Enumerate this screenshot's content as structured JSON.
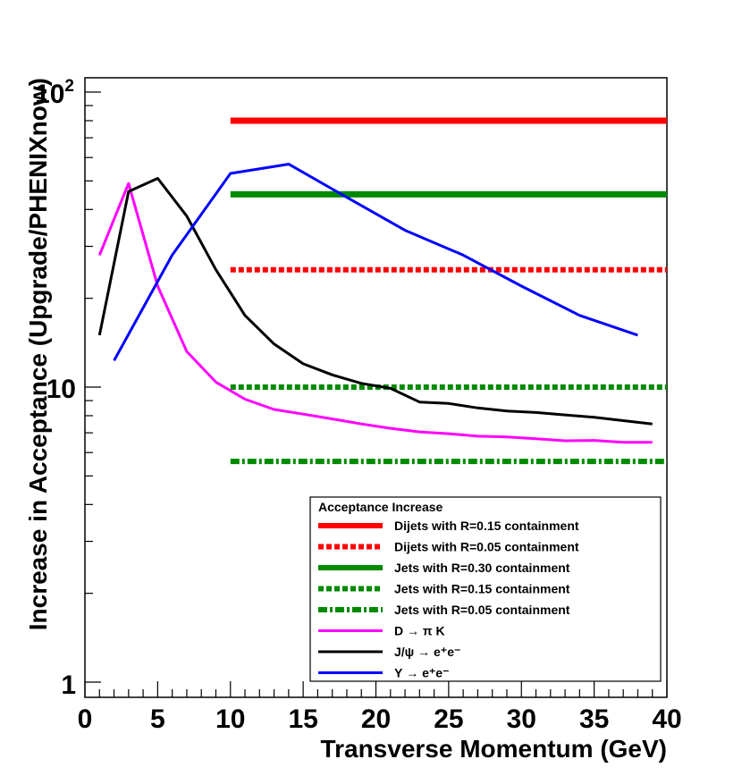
{
  "chart_data": {
    "type": "line",
    "title": "",
    "xlabel": "Transverse Momentum (GeV)",
    "ylabel": "Increase in Acceptance (Upgrade/PHENIXnow)",
    "xlim": [
      0,
      40
    ],
    "ylim": [
      0.9,
      100
    ],
    "yscale": "log",
    "x_ticks": [
      0,
      5,
      10,
      15,
      20,
      25,
      30,
      35,
      40
    ],
    "x_tick_labels": [
      "0",
      "5",
      "10",
      "15",
      "20",
      "25",
      "30",
      "35",
      "40"
    ],
    "y_tick_labels": {
      "base": "10",
      "exp": "2",
      "mid": "10",
      "low": "1"
    },
    "legend_title": "Acceptance Increase",
    "series": [
      {
        "name": "Dijets with R=0.15 containment",
        "color": "#ff0000",
        "style": "solid",
        "width": 7,
        "x": [
          10,
          40
        ],
        "y": [
          80,
          80
        ]
      },
      {
        "name": "Dijets with R=0.05 containment",
        "color": "#ff0000",
        "style": "dotted",
        "width": 6,
        "x": [
          10,
          40
        ],
        "y": [
          25,
          25
        ]
      },
      {
        "name": "Jets with R=0.30 containment",
        "color": "#008a00",
        "style": "solid",
        "width": 7,
        "x": [
          10,
          40
        ],
        "y": [
          45,
          45
        ]
      },
      {
        "name": "Jets with R=0.15 containment",
        "color": "#008a00",
        "style": "dotted",
        "width": 6,
        "x": [
          10,
          40
        ],
        "y": [
          10,
          10
        ]
      },
      {
        "name": "Jets with R=0.05 containment",
        "color": "#008a00",
        "style": "dashdot",
        "width": 6,
        "x": [
          10,
          40
        ],
        "y": [
          5.6,
          5.6
        ]
      },
      {
        "name_parts": [
          "D ",
          "→",
          " π K"
        ],
        "name": "D → π K",
        "color": "#ff00ff",
        "style": "solid",
        "width": 3,
        "x": [
          1,
          3,
          5,
          7,
          9,
          11,
          13,
          15,
          17,
          19,
          21,
          23,
          25,
          27,
          29,
          31,
          33,
          35,
          37,
          39
        ],
        "y": [
          28,
          49,
          22,
          13.2,
          10.4,
          9.1,
          8.4,
          8.1,
          7.8,
          7.5,
          7.25,
          7.05,
          6.95,
          6.82,
          6.78,
          6.68,
          6.58,
          6.6,
          6.5,
          6.5
        ]
      },
      {
        "name_parts": [
          "J/ψ ",
          "→",
          " e⁺e⁻"
        ],
        "name": "J/ψ → e⁺e⁻",
        "color": "#000000",
        "style": "solid",
        "width": 3,
        "x": [
          1,
          3,
          5,
          7,
          9,
          11,
          13,
          15,
          17,
          19,
          21,
          23,
          25,
          27,
          29,
          31,
          33,
          35,
          37,
          39
        ],
        "y": [
          15,
          46,
          51,
          38,
          25,
          17.5,
          14,
          12,
          11,
          10.3,
          9.9,
          8.9,
          8.8,
          8.5,
          8.3,
          8.2,
          8.05,
          7.9,
          7.7,
          7.5
        ]
      },
      {
        "name_parts": [
          "Υ ",
          "→",
          " e⁺e⁻"
        ],
        "name": "Υ → e⁺e⁻",
        "color": "#0000ff",
        "style": "solid",
        "width": 3,
        "x": [
          2,
          6,
          10,
          14,
          18,
          22,
          26,
          30,
          34,
          38
        ],
        "y": [
          12.3,
          28,
          53,
          57,
          44,
          34,
          28,
          22,
          17.5,
          15
        ]
      }
    ]
  }
}
